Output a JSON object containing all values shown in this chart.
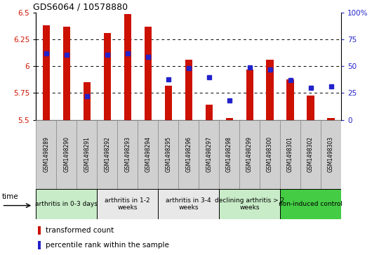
{
  "title": "GDS6064 / 10578880",
  "samples": [
    "GSM1498289",
    "GSM1498290",
    "GSM1498291",
    "GSM1498292",
    "GSM1498293",
    "GSM1498294",
    "GSM1498295",
    "GSM1498296",
    "GSM1498297",
    "GSM1498298",
    "GSM1498299",
    "GSM1498300",
    "GSM1498301",
    "GSM1498302",
    "GSM1498303"
  ],
  "transformed_count": [
    6.38,
    6.37,
    5.85,
    6.31,
    6.49,
    6.37,
    5.82,
    6.06,
    5.64,
    5.52,
    5.97,
    6.06,
    5.88,
    5.73,
    5.52
  ],
  "percentile_rank": [
    62,
    61,
    22,
    61,
    62,
    59,
    38,
    48,
    40,
    18,
    49,
    47,
    37,
    30,
    31
  ],
  "ymin": 5.5,
  "ymax": 6.5,
  "yticks_left": [
    5.5,
    5.75,
    6.0,
    6.25,
    6.5
  ],
  "ytick_labels_left": [
    "5.5",
    "5.75",
    "6",
    "6.25",
    "6.5"
  ],
  "yticks_right_vals": [
    0,
    25,
    50,
    75,
    100
  ],
  "ytick_labels_right": [
    "0",
    "25",
    "50",
    "75",
    "100%"
  ],
  "groups": [
    {
      "label": "arthritis in 0-3 days",
      "start": 0,
      "end": 3,
      "color": "#c8ecc8"
    },
    {
      "label": "arthritis in 1-2\nweeks",
      "start": 3,
      "end": 6,
      "color": "#e8e8e8"
    },
    {
      "label": "arthritis in 3-4\nweeks",
      "start": 6,
      "end": 9,
      "color": "#e8e8e8"
    },
    {
      "label": "declining arthritis > 2\nweeks",
      "start": 9,
      "end": 12,
      "color": "#c8ecc8"
    },
    {
      "label": "non-induced control",
      "start": 12,
      "end": 15,
      "color": "#44cc44"
    }
  ],
  "bar_color": "#cc1100",
  "dot_color": "#2222cc",
  "grid_yticks": [
    5.75,
    6.0,
    6.25
  ],
  "legend_red": "transformed count",
  "legend_blue": "percentile rank within the sample",
  "sample_box_color": "#d0d0d0",
  "bg_color": "#ffffff"
}
